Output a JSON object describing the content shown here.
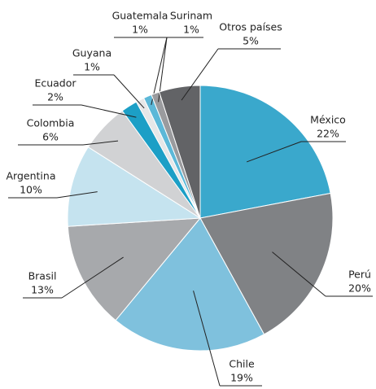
{
  "chart_data": {
    "type": "pie",
    "categories": [
      "México",
      "Perú",
      "Chile",
      "Brasil",
      "Argentina",
      "Colombia",
      "Ecuador",
      "Guyana",
      "Guatemala",
      "Surinam",
      "Otros países"
    ],
    "values": [
      22,
      20,
      19,
      13,
      10,
      6,
      2,
      1,
      1,
      1,
      5
    ],
    "value_labels": [
      "22%",
      "20%",
      "19%",
      "13%",
      "10%",
      "6%",
      "2%",
      "1%",
      "1%",
      "1%",
      "5%"
    ],
    "colors": [
      "#3aa8cc",
      "#808285",
      "#7fc1dd",
      "#a7a9ac",
      "#c5e3ef",
      "#d1d2d4",
      "#1c9fc6",
      "#e6e7e8",
      "#5cb8d8",
      "#9a9b9e",
      "#626366"
    ]
  }
}
